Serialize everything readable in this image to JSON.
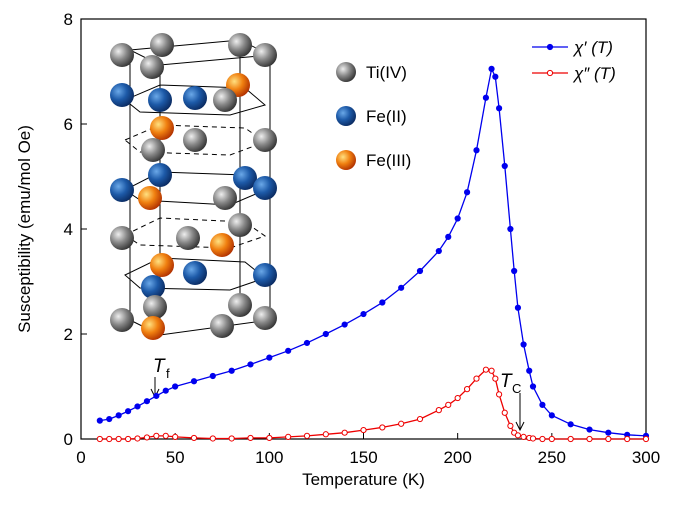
{
  "chart_data": {
    "type": "line",
    "xlabel": "Temperature (K)",
    "ylabel": "Susceptibility (emu/mol Oe)",
    "x": [
      10,
      15,
      20,
      25,
      30,
      35,
      40,
      45,
      50,
      60,
      70,
      80,
      90,
      100,
      110,
      120,
      130,
      140,
      150,
      160,
      170,
      180,
      190,
      195,
      200,
      205,
      210,
      215,
      218,
      220,
      222,
      225,
      228,
      230,
      232,
      235,
      238,
      240,
      245,
      250,
      260,
      270,
      280,
      290,
      300
    ],
    "series": [
      {
        "name": "χ′ (T)",
        "color": "#0000ee",
        "marker": "filled",
        "values": [
          0.35,
          0.38,
          0.45,
          0.53,
          0.62,
          0.72,
          0.82,
          0.92,
          1.0,
          1.1,
          1.2,
          1.3,
          1.42,
          1.55,
          1.68,
          1.83,
          2.0,
          2.18,
          2.38,
          2.6,
          2.88,
          3.2,
          3.58,
          3.85,
          4.2,
          4.7,
          5.5,
          6.5,
          7.05,
          6.9,
          6.3,
          5.2,
          4.0,
          3.2,
          2.5,
          1.8,
          1.3,
          1.0,
          0.65,
          0.45,
          0.28,
          0.18,
          0.12,
          0.08,
          0.06
        ]
      },
      {
        "name": "χ″ (T)",
        "color": "#ee0000",
        "marker": "open",
        "values": [
          0,
          0,
          0,
          0,
          0.01,
          0.03,
          0.06,
          0.06,
          0.04,
          0.02,
          0.01,
          0.01,
          0.02,
          0.02,
          0.04,
          0.06,
          0.09,
          0.12,
          0.17,
          0.22,
          0.29,
          0.38,
          0.55,
          0.65,
          0.78,
          0.95,
          1.15,
          1.32,
          1.3,
          1.15,
          0.85,
          0.5,
          0.25,
          0.12,
          0.07,
          0.04,
          0.02,
          0.01,
          0,
          0,
          0,
          0,
          0,
          0,
          0
        ]
      }
    ],
    "xlim": [
      0,
      300
    ],
    "xticks": [
      0,
      50,
      100,
      150,
      200,
      250,
      300
    ],
    "ylim": [
      0,
      8
    ],
    "yticks": [
      0,
      2,
      4,
      6,
      8
    ],
    "legend": "top-right",
    "annotations": [
      {
        "text": "T",
        "subscript": "f"
      },
      {
        "text": "T",
        "subscript": "C"
      }
    ],
    "inset_labels": [
      "Ti(IV)",
      "Fe(II)",
      "Fe(III)"
    ]
  }
}
